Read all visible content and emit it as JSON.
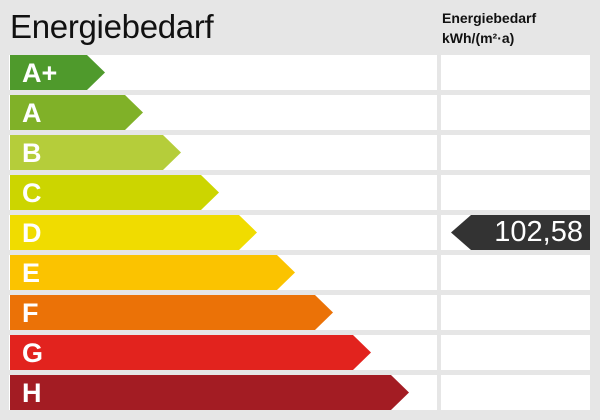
{
  "title": "Energiebedarf",
  "column_header": {
    "line1": "Energiebedarf",
    "line2": "kWh/(m²·a)"
  },
  "classes": [
    {
      "label": "A+",
      "color": "#4f9a2c"
    },
    {
      "label": "A",
      "color": "#80b128"
    },
    {
      "label": "B",
      "color": "#b5cd3a"
    },
    {
      "label": "C",
      "color": "#ccd500"
    },
    {
      "label": "D",
      "color": "#f0dc00"
    },
    {
      "label": "E",
      "color": "#fbc300"
    },
    {
      "label": "F",
      "color": "#eb7207"
    },
    {
      "label": "G",
      "color": "#e2231e"
    },
    {
      "label": "H",
      "color": "#a31c23"
    }
  ],
  "value": {
    "text": "102,58",
    "class": "D",
    "color": "#333333"
  }
}
